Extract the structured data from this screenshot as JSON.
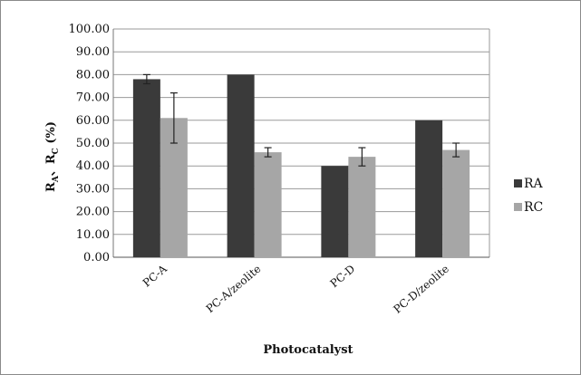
{
  "chart_data": {
    "type": "bar",
    "title": "",
    "xlabel": "Photocatalyst",
    "ylabel": {
      "main": "R",
      "sub1": "A",
      "sep": "、R",
      "sub2": "C",
      "unit": " (%)"
    },
    "categories": [
      "PC-A",
      "PC-A/zeolite",
      "PC-D",
      "PC-D/zeolite"
    ],
    "yticks": [
      "0.00",
      "10.00",
      "20.00",
      "30.00",
      "40.00",
      "50.00",
      "60.00",
      "70.00",
      "80.00",
      "90.00",
      "100.00"
    ],
    "ylim": [
      0,
      100
    ],
    "grid": true,
    "legend_position": "right",
    "series": [
      {
        "name": "RA",
        "color": "#3a3a3a",
        "values": [
          78,
          80,
          40,
          60
        ],
        "errors": [
          2,
          0,
          0,
          0
        ]
      },
      {
        "name": "RC",
        "color": "#a6a6a6",
        "values": [
          61,
          46,
          44,
          47
        ],
        "errors": [
          11,
          2,
          4,
          3
        ]
      }
    ]
  }
}
